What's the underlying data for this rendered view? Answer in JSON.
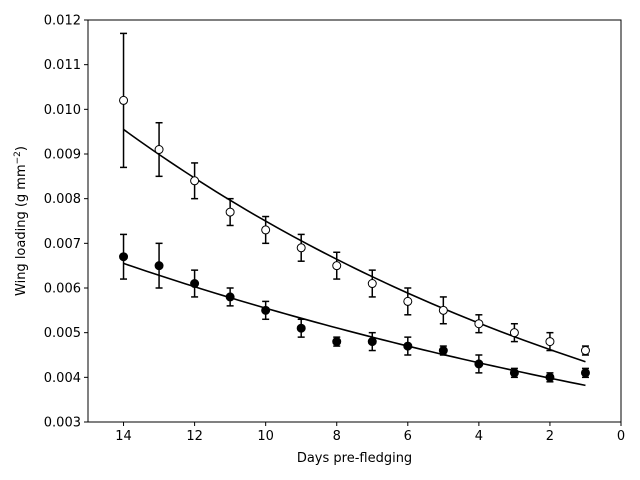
{
  "chart_data": {
    "type": "scatter",
    "title": "",
    "xlabel": "Days pre-fledging",
    "ylabel": "Wing loading (g mm",
    "ylabel_sup": "−2",
    "ylabel_close": ")",
    "xlim": [
      15,
      0
    ],
    "ylim": [
      0.003,
      0.012
    ],
    "x_inverted": true,
    "grid": false,
    "legend": "none",
    "xticks": [
      14,
      12,
      10,
      8,
      6,
      4,
      2,
      0
    ],
    "xtick_labels": [
      "14",
      "12",
      "10",
      "8",
      "6",
      "4",
      "2",
      "0"
    ],
    "yticks": [
      0.003,
      0.004,
      0.005,
      0.006,
      0.007,
      0.008,
      0.009,
      0.01,
      0.011,
      0.012
    ],
    "ytick_labels": [
      "0.003",
      "0.004",
      "0.005",
      "0.006",
      "0.007",
      "0.008",
      "0.009",
      "0.010",
      "0.011",
      "0.012"
    ],
    "series": [
      {
        "marker": "open-circle",
        "color": "#000000",
        "x": [
          14,
          13,
          12,
          11,
          10,
          9,
          8,
          7,
          6,
          5,
          4,
          3,
          2,
          1
        ],
        "y": [
          0.0102,
          0.0091,
          0.0084,
          0.0077,
          0.0073,
          0.0069,
          0.0065,
          0.0061,
          0.0057,
          0.0055,
          0.0052,
          0.005,
          0.0048,
          0.0046
        ],
        "err": [
          0.0015,
          0.0006,
          0.0004,
          0.0003,
          0.0003,
          0.0003,
          0.0003,
          0.0003,
          0.0003,
          0.0003,
          0.0002,
          0.0002,
          0.0002,
          0.0001
        ],
        "fit": {
          "x": [
            14,
            1
          ],
          "y": [
            0.00955,
            0.00435
          ],
          "shape": "exponential"
        }
      },
      {
        "marker": "filled-circle",
        "color": "#000000",
        "x": [
          14,
          13,
          12,
          11,
          10,
          9,
          8,
          7,
          6,
          5,
          4,
          3,
          2,
          1
        ],
        "y": [
          0.0067,
          0.0065,
          0.0061,
          0.0058,
          0.0055,
          0.0051,
          0.0048,
          0.0048,
          0.0047,
          0.0046,
          0.0043,
          0.0041,
          0.004,
          0.0041
        ],
        "err": [
          0.0005,
          0.0005,
          0.0003,
          0.0002,
          0.0002,
          0.0002,
          0.0001,
          0.0002,
          0.0002,
          0.0001,
          0.0002,
          0.0001,
          0.0001,
          0.0001
        ],
        "fit": {
          "x": [
            14,
            1
          ],
          "y": [
            0.00655,
            0.00382
          ],
          "shape": "exponential"
        }
      }
    ]
  }
}
